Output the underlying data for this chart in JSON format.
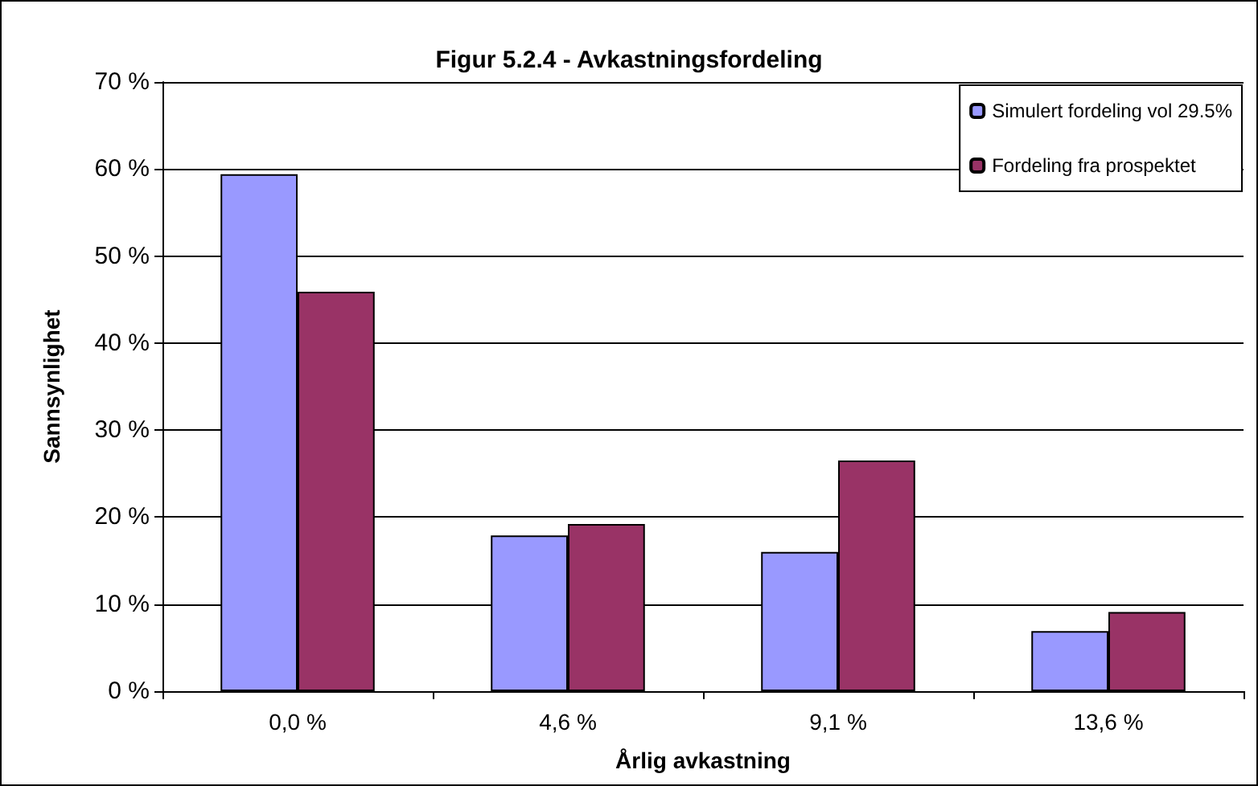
{
  "chart_data": {
    "type": "bar",
    "title": "Figur 5.2.4 - Avkastningsfordeling",
    "xlabel": "Årlig avkastning",
    "ylabel": "Sannsynlighet",
    "categories": [
      "0,0 %",
      "4,6 %",
      "9,1 %",
      "13,6 %"
    ],
    "series": [
      {
        "name": "Simulert fordeling vol 29.5%",
        "color": "#9999ff",
        "values": [
          59.4,
          17.9,
          16.0,
          6.9
        ]
      },
      {
        "name": "Fordeling fra prospektet",
        "color": "#993366",
        "values": [
          45.9,
          19.2,
          26.5,
          9.1
        ]
      }
    ],
    "ylim": [
      0,
      70
    ],
    "yticks": [
      {
        "value": 0,
        "label": "0 %"
      },
      {
        "value": 10,
        "label": "10 %"
      },
      {
        "value": 20,
        "label": "20 %"
      },
      {
        "value": 30,
        "label": "30 %"
      },
      {
        "value": 40,
        "label": "40 %"
      },
      {
        "value": 50,
        "label": "50 %"
      },
      {
        "value": 60,
        "label": "60 %"
      },
      {
        "value": 70,
        "label": "70 %"
      }
    ],
    "grid": "y",
    "legend": "top right"
  }
}
